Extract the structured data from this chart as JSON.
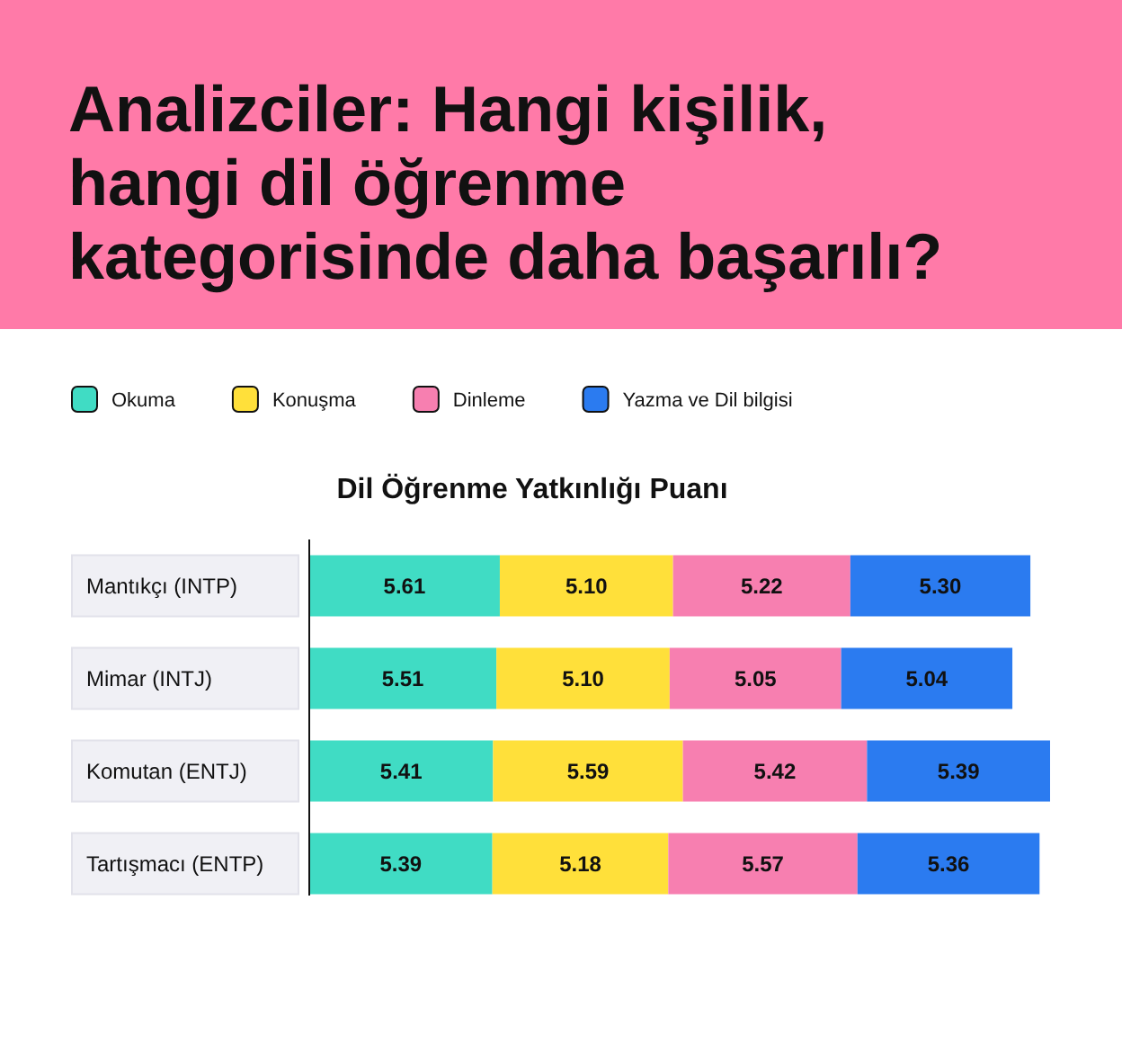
{
  "chart_data": {
    "type": "bar",
    "orientation": "horizontal",
    "stacked": true,
    "legend": "top",
    "title": "Analizciler: Hangi kişilik, hangi dil öğrenme kategorisinde daha başarılı?",
    "subtitle": "Dil Öğrenme Yatkınlığı Puanı",
    "categories": [
      "Mantıkçı (INTP)",
      "Mimar (INTJ)",
      "Komutan (ENTJ)",
      "Tartışmacı (ENTP)"
    ],
    "series": [
      {
        "name": "Okuma",
        "color": "#40dcc4",
        "values": [
          5.61,
          5.51,
          5.41,
          5.39
        ],
        "value_labels": [
          "5.61",
          "5.51",
          "5.41",
          "5.39"
        ]
      },
      {
        "name": "Konuşma",
        "color": "#ffe03a",
        "values": [
          5.1,
          5.1,
          5.59,
          5.18
        ],
        "value_labels": [
          "5.10",
          "5.10",
          "5.59",
          "5.18"
        ]
      },
      {
        "name": "Dinleme",
        "color": "#f77fb0",
        "values": [
          5.22,
          5.05,
          5.42,
          5.57
        ],
        "value_labels": [
          "5.22",
          "5.05",
          "5.42",
          "5.57"
        ]
      },
      {
        "name": "Yazma ve Dil bilgisi",
        "color": "#2b7bf0",
        "values": [
          5.3,
          5.04,
          5.39,
          5.36
        ],
        "value_labels": [
          "5.30",
          "5.04",
          "5.39",
          "5.36"
        ]
      }
    ]
  }
}
